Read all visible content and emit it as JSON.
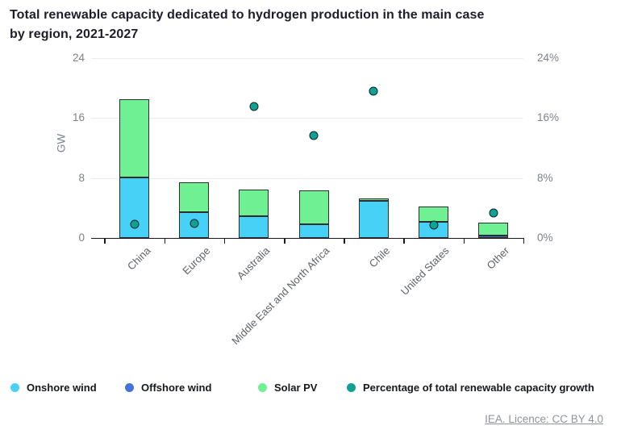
{
  "title": {
    "line1": "Total renewable capacity dedicated to hydrogen production in the main case",
    "line2": "by region, 2021-2027"
  },
  "chart_data": {
    "type": "bar",
    "stacked": true,
    "grid": true,
    "legend_position": "bottom",
    "categories": [
      "China",
      "Europe",
      "Australia",
      "Middle East and North Africa",
      "Chile",
      "United States",
      "Other"
    ],
    "series": [
      {
        "name": "Onshore wind",
        "mark": "bar",
        "axis": "left",
        "color": "#47d1f6",
        "values": [
          8.1,
          3.4,
          2.9,
          1.8,
          4.9,
          2.2,
          0
        ]
      },
      {
        "name": "Offshore wind",
        "mark": "bar",
        "axis": "left",
        "color": "#4472d9",
        "values": [
          0,
          0,
          0,
          0,
          0,
          0,
          0.3
        ]
      },
      {
        "name": "Solar PV",
        "mark": "bar",
        "axis": "left",
        "color": "#6ef093",
        "values": [
          10.4,
          4.0,
          3.6,
          4.6,
          0.4,
          2.0,
          1.7
        ]
      },
      {
        "name": "Percentage of total renewable capacity growth",
        "mark": "point",
        "axis": "right",
        "color": "#0ea293",
        "values": [
          1.8,
          1.9,
          17.5,
          13.7,
          19.6,
          1.7,
          3.3
        ]
      }
    ],
    "left_axis": {
      "title": "GW",
      "min": 0,
      "max": 24,
      "ticks": [
        {
          "value": 0,
          "label": "0"
        },
        {
          "value": 8,
          "label": "8"
        },
        {
          "value": 16,
          "label": "16"
        },
        {
          "value": 24,
          "label": "24"
        }
      ]
    },
    "right_axis": {
      "min": 0,
      "max": 24,
      "ticks": [
        {
          "value": 0,
          "label": "0%"
        },
        {
          "value": 8,
          "label": "8%"
        },
        {
          "value": 16,
          "label": "16%"
        },
        {
          "value": 24,
          "label": "24%"
        }
      ]
    }
  },
  "legend": {
    "items": [
      {
        "label": "Onshore wind",
        "color": "#47d1f6"
      },
      {
        "label": "Offshore wind",
        "color": "#4472d9"
      },
      {
        "label": "Solar PV",
        "color": "#6ef093"
      },
      {
        "label": "Percentage of total renewable capacity growth",
        "color": "#0ea293"
      }
    ]
  },
  "footer": {
    "credit_link": "IEA. Licence: CC BY 4.0"
  }
}
